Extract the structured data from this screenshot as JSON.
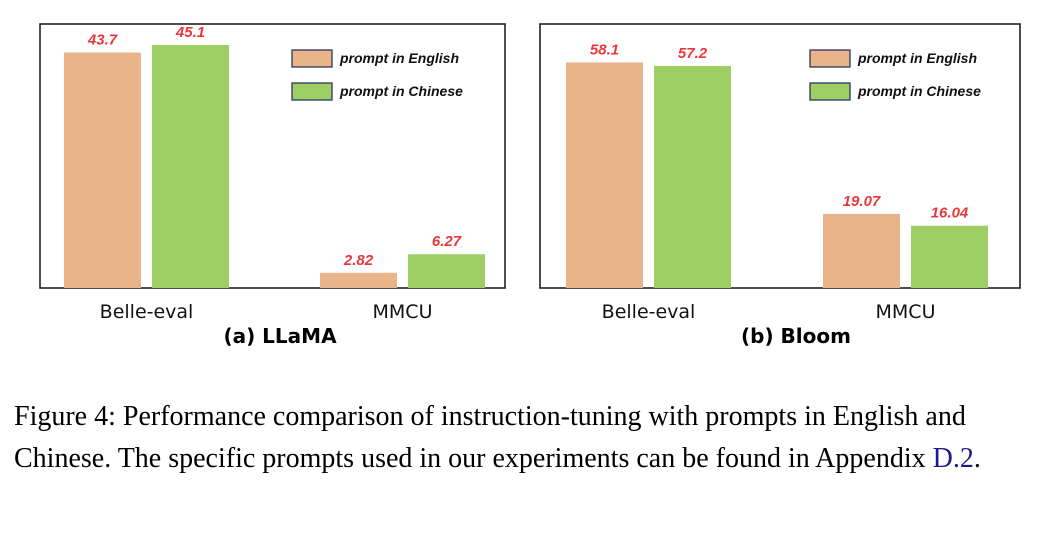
{
  "figure": {
    "caption_text": "Figure 4: Performance comparison of instruction-tuning with prompts in English and Chinese. The specific prompts used in our experiments can be found in Appendix ",
    "caption_ref": "D.2",
    "caption_end": "."
  },
  "chart_data": [
    {
      "type": "bar",
      "title": "(a) LLaMA",
      "categories": [
        "Belle-eval",
        "MMCU"
      ],
      "series": [
        {
          "name": "prompt in English",
          "color": "#eab48b",
          "values": [
            43.7,
            2.82
          ],
          "labels": [
            "43.7",
            "2.82"
          ]
        },
        {
          "name": "prompt in Chinese",
          "color": "#9ecf64",
          "values": [
            45.1,
            6.27
          ],
          "labels": [
            "45.1",
            "6.27"
          ]
        }
      ],
      "ylim": [
        0,
        49
      ],
      "grid": false,
      "legend_position": "top-right",
      "value_label_color": "#e8383b"
    },
    {
      "type": "bar",
      "title": "(b) Bloom",
      "categories": [
        "Belle-eval",
        "MMCU"
      ],
      "series": [
        {
          "name": "prompt in English",
          "color": "#eab48b",
          "values": [
            58.1,
            19.07
          ],
          "labels": [
            "58.1",
            "19.07"
          ]
        },
        {
          "name": "prompt in Chinese",
          "color": "#9ecf64",
          "values": [
            57.2,
            16.04
          ],
          "labels": [
            "57.2",
            "16.04"
          ]
        }
      ],
      "ylim": [
        0,
        68
      ],
      "grid": false,
      "legend_position": "top-right",
      "value_label_color": "#e8383b"
    }
  ]
}
